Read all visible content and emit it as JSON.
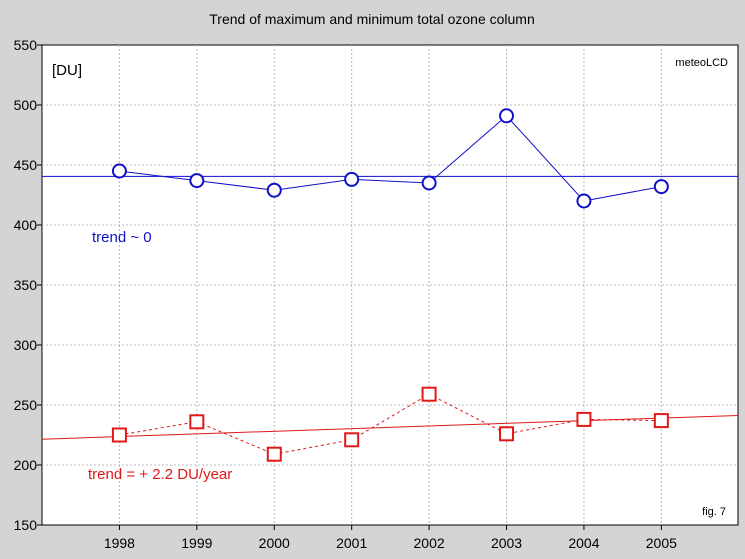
{
  "chart_data": {
    "type": "line",
    "title": "Trend of maximum and minimum total ozone column",
    "unit_label": "[DU]",
    "source_label": "meteoLCD",
    "figure_label": "fig. 7",
    "xlabel": "",
    "ylabel": "",
    "x": [
      1998,
      1999,
      2000,
      2001,
      2002,
      2003,
      2004,
      2005
    ],
    "xlim": [
      1997.0,
      2005.99
    ],
    "ylim": [
      150,
      550
    ],
    "yticks": [
      150,
      200,
      250,
      300,
      350,
      400,
      450,
      500,
      550
    ],
    "grid": true,
    "series": [
      {
        "marker": "circle",
        "line_style": "solid",
        "color": "#1010c8",
        "values": [
          445,
          437,
          429,
          438,
          435,
          491,
          420,
          432
        ]
      },
      {
        "marker": "square",
        "line_style": "dashed",
        "color": "#e01818",
        "values": [
          225,
          236,
          209,
          221,
          259,
          226,
          238,
          237
        ]
      }
    ],
    "trend_lines": [
      {
        "label": "trend ~ 0",
        "color": "#1010c8",
        "start": {
          "x": 1997.0,
          "y": 440.5
        },
        "end": {
          "x": 2005.99,
          "y": 440.5
        }
      },
      {
        "label": "trend = + 2.2 DU/year",
        "color": "#e01818",
        "start": {
          "x": 1997.0,
          "y": 221.5
        },
        "end": {
          "x": 2005.99,
          "y": 241.3
        }
      }
    ]
  }
}
